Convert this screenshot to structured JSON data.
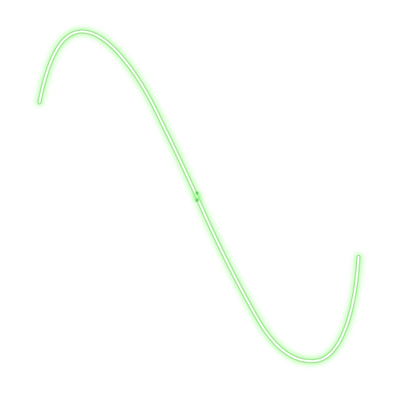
{
  "curve": {
    "shape": "s-curve",
    "style": "neon-outline-glow",
    "colors": {
      "glow": "#7dff6a",
      "outline": "#8ee07e",
      "core": "#ffffff",
      "marker": "#6fd36a"
    },
    "has_center_marker": true
  }
}
